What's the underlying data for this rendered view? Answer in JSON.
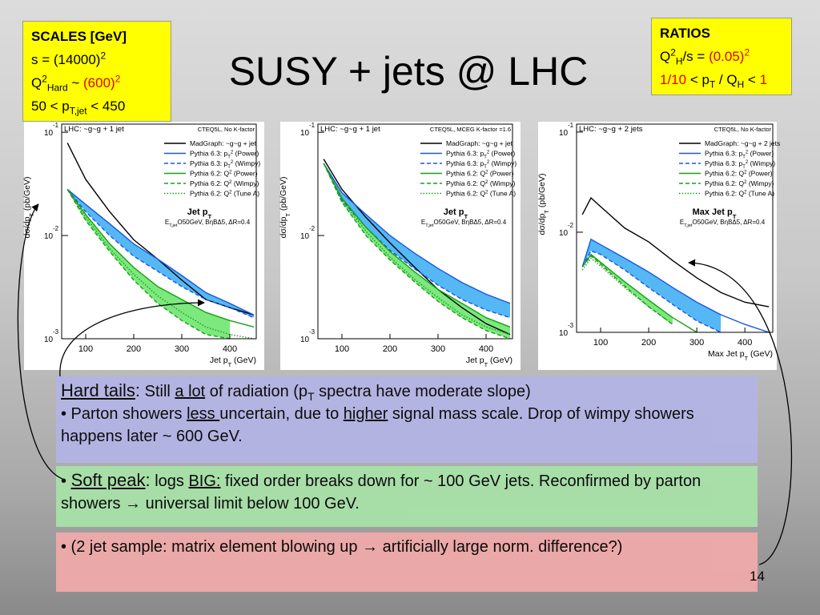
{
  "title": "SUSY + jets @ LHC",
  "scales": {
    "title": "SCALES [GeV]",
    "lines": [
      [
        "s = (14000)",
        {
          "text": "2",
          "style": "sup"
        }
      ],
      [
        "Q",
        {
          "text": "2",
          "style": "sup"
        },
        {
          "text": "Hard",
          "style": "sub"
        },
        " ~ ",
        {
          "text": "(600)",
          "style": "red"
        },
        {
          "text": "2",
          "style": "red sup"
        }
      ],
      [
        "50 < p",
        {
          "text": "T,jet",
          "style": "sub"
        },
        " < 450"
      ]
    ]
  },
  "ratios": {
    "title": "RATIOS",
    "lines": [
      [
        "Q",
        {
          "text": "2",
          "style": "sup"
        },
        {
          "text": "H",
          "style": "sub"
        },
        "/s = ",
        {
          "text": "(0.05)",
          "style": "red"
        },
        {
          "text": "2",
          "style": "red sup"
        }
      ],
      [
        {
          "text": "1/10",
          "style": "red"
        },
        " < p",
        {
          "text": "T",
          "style": "sub"
        },
        " / Q",
        {
          "text": "H",
          "style": "sub"
        },
        " < ",
        {
          "text": "1",
          "style": "red"
        }
      ]
    ]
  },
  "plots": [
    {
      "type": "line",
      "label": "LHC: ~g~g + 1 jet",
      "pdf": "CTEQ5L, No K-factor",
      "heading": [
        "Jet p",
        {
          "text": "T",
          "style": "sub"
        }
      ],
      "cuts": [
        "E",
        {
          "text": "T,jet",
          "style": "sub"
        },
        "O50GeV, BηBΔ5, ΔR=0.4"
      ],
      "ylabel": [
        "dσ/dp",
        {
          "text": "T",
          "style": "sub"
        },
        " (pb/GeV)"
      ],
      "xlabel": [
        "Jet p",
        {
          "text": "T",
          "style": "sub"
        },
        " (GeV)"
      ],
      "log_y": true,
      "xlim": [
        50,
        455
      ],
      "xticks": [
        100,
        200,
        300,
        400
      ],
      "ylim": [
        0.001,
        0.12
      ],
      "yticks": [
        {
          "value": 0.001,
          "base": "10",
          "exp": "-3"
        },
        {
          "value": 0.01,
          "base": "10",
          "exp": "-2"
        },
        {
          "value": 0.1,
          "base": "10",
          "exp": "-1"
        }
      ],
      "x": [
        62,
        100,
        150,
        200,
        250,
        300,
        350,
        400,
        450
      ],
      "series": [
        {
          "name": [
            "MadGraph: ~g~g + jet"
          ],
          "color": "#000000",
          "dash": "solid",
          "values": [
            0.079,
            0.035,
            0.017,
            0.0091,
            0.0059,
            0.0037,
            0.0024,
            0.002,
            0.0017
          ]
        },
        {
          "name": [
            "Pythia 6.3: p",
            {
              "text": "T",
              "style": "sub"
            },
            {
              "text": "2",
              "style": "sup"
            },
            " (Power)"
          ],
          "color": "#1a56e0",
          "dash": "solid",
          "band_color": "#55b8f5",
          "values": [
            0.028,
            0.02,
            0.013,
            0.0083,
            0.0059,
            0.0041,
            0.0028,
            0.0022,
            0.0017
          ]
        },
        {
          "name": [
            "Pythia 6.3: p",
            {
              "text": "T",
              "style": "sub"
            },
            {
              "text": "2",
              "style": "sup"
            },
            " (Wimpy)"
          ],
          "color": "#1a56e0",
          "dash": "dashed",
          "values": [
            0.028,
            0.017,
            0.01,
            0.0063,
            0.0045,
            0.0032,
            0.0024,
            0.002,
            0.0016
          ]
        },
        {
          "name": [
            "Pythia 6.2: Q",
            {
              "text": "2",
              "style": "sup"
            },
            " (Power)"
          ],
          "color": "#17a017",
          "dash": "solid",
          "band_color": "#7de87d",
          "values": [
            0.028,
            0.016,
            0.0083,
            0.0049,
            0.0032,
            0.0024,
            0.0018,
            0.0015,
            0.0013
          ]
        },
        {
          "name": [
            "Pythia 6.2: Q",
            {
              "text": "2",
              "style": "sup"
            },
            " (Wimpy)"
          ],
          "color": "#17a017",
          "dash": "dashed",
          "values": [
            0.028,
            0.014,
            0.007,
            0.0037,
            0.0022,
            0.0015,
            0.0011,
            0.001,
            null
          ]
        },
        {
          "name": [
            "Pythia 6.2: Q",
            {
              "text": "2",
              "style": "sup"
            },
            " (Tune A)"
          ],
          "color": "#17a017",
          "dash": "dotted",
          "values": [
            0.028,
            0.015,
            0.0075,
            0.0042,
            0.0026,
            0.0018,
            0.0013,
            0.0011,
            0.001
          ]
        }
      ]
    },
    {
      "type": "line",
      "label": "LHC: ~g~g + 1 jet",
      "pdf": "CTEQ5L, MCEG K-factor =1.6",
      "heading": [
        "Jet p",
        {
          "text": "T",
          "style": "sub"
        }
      ],
      "cuts": [
        "E",
        {
          "text": "T,jet",
          "style": "sub"
        },
        "O50GeV, BηBΔ5, ΔR=0.4"
      ],
      "ylabel": [
        "dσ/dp",
        {
          "text": "T",
          "style": "sub"
        },
        " (pb/GeV)"
      ],
      "xlabel": [
        "Jet p",
        {
          "text": "T",
          "style": "sub"
        },
        " (GeV)"
      ],
      "log_y": true,
      "xlim": [
        50,
        455
      ],
      "xticks": [
        100,
        200,
        300,
        400
      ],
      "ylim": [
        0.001,
        0.12
      ],
      "yticks": [
        {
          "value": 0.001,
          "base": "10",
          "exp": "-3"
        },
        {
          "value": 0.01,
          "base": "10",
          "exp": "-2"
        },
        {
          "value": 0.1,
          "base": "10",
          "exp": "-1"
        }
      ],
      "x": [
        62,
        100,
        150,
        200,
        250,
        300,
        350,
        400,
        450
      ],
      "series": [
        {
          "name": [
            "MadGraph: ~g~g + jet"
          ],
          "color": "#000000",
          "dash": "solid",
          "values": [
            0.055,
            0.028,
            0.015,
            0.0085,
            0.005,
            0.003,
            0.002,
            0.0014,
            0.0011
          ]
        },
        {
          "name": [
            "Pythia 6.3: p",
            {
              "text": "T",
              "style": "sub"
            },
            {
              "text": "2",
              "style": "sup"
            },
            " (Power)"
          ],
          "color": "#1a56e0",
          "dash": "solid",
          "band_color": "#55b8f5",
          "values": [
            0.05,
            0.026,
            0.016,
            0.01,
            0.0068,
            0.0048,
            0.0035,
            0.0027,
            0.0022
          ]
        },
        {
          "name": [
            "Pythia 6.3: p",
            {
              "text": "T",
              "style": "sub"
            },
            {
              "text": "2",
              "style": "sup"
            },
            " (Wimpy)"
          ],
          "color": "#1a56e0",
          "dash": "dashed",
          "values": [
            0.05,
            0.022,
            0.012,
            0.0072,
            0.0048,
            0.0033,
            0.0024,
            0.0019,
            0.0016
          ]
        },
        {
          "name": [
            "Pythia 6.2: Q",
            {
              "text": "2",
              "style": "sup"
            },
            " (Power)"
          ],
          "color": "#17a017",
          "dash": "solid",
          "band_color": "#7de87d",
          "values": [
            0.05,
            0.023,
            0.012,
            0.007,
            0.0045,
            0.003,
            0.0022,
            0.0016,
            0.0013
          ]
        },
        {
          "name": [
            "Pythia 6.2: Q",
            {
              "text": "2",
              "style": "sup"
            },
            " (Wimpy)"
          ],
          "color": "#17a017",
          "dash": "dashed",
          "values": [
            0.05,
            0.021,
            0.01,
            0.0058,
            0.0036,
            0.0023,
            0.0016,
            0.0012,
            0.001
          ]
        },
        {
          "name": [
            "Pythia 6.2: Q",
            {
              "text": "2",
              "style": "sup"
            },
            " (Tune A)"
          ],
          "color": "#17a017",
          "dash": "dotted",
          "values": [
            0.05,
            0.022,
            0.011,
            0.0062,
            0.0038,
            0.0025,
            0.0017,
            0.0013,
            0.0011
          ]
        }
      ]
    },
    {
      "type": "line",
      "label": "LHC: ~g~g + 2 jets",
      "pdf": "CTEQ5L, No K-factor",
      "heading": [
        "Max Jet p",
        {
          "text": "T",
          "style": "sub"
        }
      ],
      "cuts": [
        "E",
        {
          "text": "T,jet",
          "style": "sub"
        },
        "O50GeV, BηBΔ5, ΔR=0.4"
      ],
      "ylabel": [
        "dσ/dp",
        {
          "text": "T",
          "style": "sub"
        },
        " (pb/GeV)"
      ],
      "xlabel": [
        "Max Jet p",
        {
          "text": "T",
          "style": "sub"
        },
        " (GeV)"
      ],
      "log_y": true,
      "xlim": [
        50,
        458
      ],
      "xticks": [
        100,
        200,
        300,
        400
      ],
      "ylim": [
        0.001,
        0.12
      ],
      "yticks": [
        {
          "value": 0.001,
          "base": "10",
          "exp": "-3"
        },
        {
          "value": 0.01,
          "base": "10",
          "exp": "-2"
        },
        {
          "value": 0.1,
          "base": "10",
          "exp": "-1"
        }
      ],
      "x": [
        62,
        80,
        100,
        150,
        200,
        250,
        300,
        350,
        400,
        450
      ],
      "series": [
        {
          "name": [
            "MadGraph: ~g~g + 2 jets"
          ],
          "color": "#000000",
          "dash": "solid",
          "values": [
            0.015,
            0.022,
            0.018,
            0.011,
            0.008,
            0.0052,
            0.0035,
            0.0025,
            0.002,
            0.0018
          ]
        },
        {
          "name": [
            "Pythia 6.3: p",
            {
              "text": "T",
              "style": "sub"
            },
            {
              "text": "2",
              "style": "sup"
            },
            " (Power)"
          ],
          "color": "#1a56e0",
          "dash": "solid",
          "band_color": "#55b8f5",
          "values": [
            0.0045,
            0.0085,
            0.0075,
            0.0055,
            0.004,
            0.0028,
            0.002,
            0.0015,
            0.0012,
            0.001
          ]
        },
        {
          "name": [
            "Pythia 6.3: p",
            {
              "text": "T",
              "style": "sub"
            },
            {
              "text": "2",
              "style": "sup"
            },
            " (Wimpy)"
          ],
          "color": "#1a56e0",
          "dash": "dashed",
          "values": [
            0.0045,
            0.0065,
            0.006,
            0.0042,
            0.0028,
            0.0019,
            0.0013,
            0.001,
            null,
            null
          ]
        },
        {
          "name": [
            "Pythia 6.2: Q",
            {
              "text": "2",
              "style": "sup"
            },
            " (Power)"
          ],
          "color": "#17a017",
          "dash": "solid",
          "band_color": "#7de87d",
          "values": [
            0.0045,
            0.006,
            0.005,
            0.0032,
            0.0021,
            0.0014,
            0.001,
            null,
            null,
            null
          ]
        },
        {
          "name": [
            "Pythia 6.2: Q",
            {
              "text": "2",
              "style": "sup"
            },
            " (Wimpy)"
          ],
          "color": "#17a017",
          "dash": "dashed",
          "values": [
            0.0045,
            0.0058,
            0.0048,
            0.0029,
            0.0018,
            0.0012,
            null,
            null,
            null,
            null
          ]
        },
        {
          "name": [
            "Pythia 6.2: Q",
            {
              "text": "2",
              "style": "sup"
            },
            " (Tune A)"
          ],
          "color": "#17a017",
          "dash": "dotted",
          "values": [
            0.0042,
            0.0055,
            0.0046,
            0.0028,
            0.0018,
            0.0012,
            null,
            null,
            null,
            null
          ]
        }
      ]
    }
  ],
  "boxes": [
    {
      "color": "#b4b4e6",
      "paragraphs": [
        [
          {
            "text": "Hard tails",
            "style": "big u"
          },
          {
            "text": ":",
            "style": "big"
          },
          " Still ",
          {
            "text": "a lot",
            "style": "u"
          },
          " of radiation (p",
          {
            "text": "T",
            "style": "sub"
          },
          " spectra have moderate slope)"
        ],
        [
          "• Parton showers ",
          {
            "text": "less ",
            "style": "u"
          },
          "uncertain, due to ",
          {
            "text": "higher",
            "style": "u"
          },
          " signal mass scale. Drop of wimpy showers happens later ~ 600 GeV."
        ]
      ]
    },
    {
      "color": "#a8e2a8",
      "paragraphs": [
        [
          "• ",
          {
            "text": "Soft peak",
            "style": "big u"
          },
          {
            "text": ":",
            "style": "big"
          },
          " logs ",
          {
            "text": "BIG:",
            "style": "u"
          },
          " fixed order breaks down for ~ 100 GeV jets. Reconfirmed by parton showers ",
          "→",
          " universal limit below 100 GeV."
        ]
      ]
    },
    {
      "color": "#f2aaaa",
      "paragraphs": [
        [
          "• (2 jet sample: matrix element blowing up ",
          "→",
          " artificially large norm. difference?)"
        ]
      ]
    }
  ],
  "page": "14"
}
